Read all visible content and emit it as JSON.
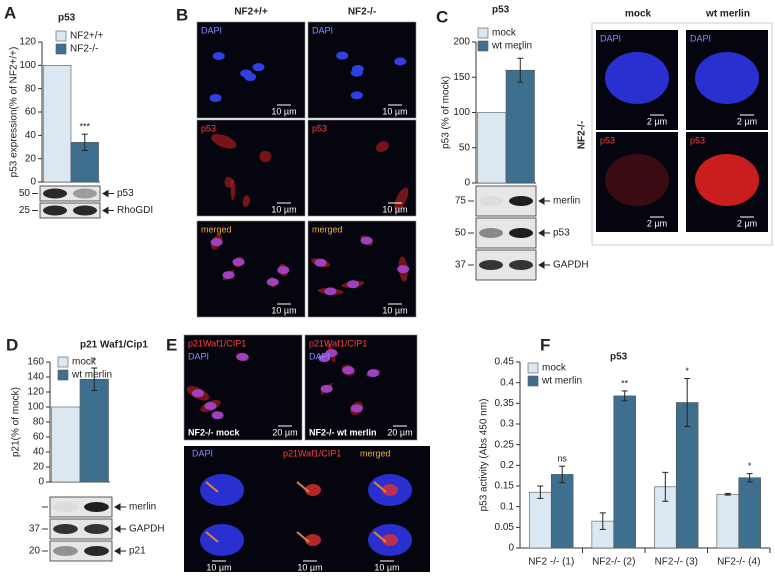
{
  "chart_data": [
    {
      "type": "bar",
      "panel": "A",
      "title": "p53",
      "y_label": "p53 expression(% of NF2+/+)",
      "categories": [
        null
      ],
      "series": [
        {
          "name": "NF2+/+",
          "color": "#dbe8f1",
          "values": [
            100
          ]
        },
        {
          "name": "NF2-/-",
          "color": "#3f6f8f",
          "values": [
            34
          ],
          "errors": [
            7
          ],
          "annotations": [
            "***"
          ]
        }
      ],
      "ylim": [
        0,
        120
      ],
      "yticks": [
        0,
        20,
        40,
        60,
        80,
        100,
        120
      ],
      "blots": [
        {
          "marker": "50",
          "label": "p53"
        },
        {
          "marker": "25",
          "label": "RhoGDI"
        }
      ]
    },
    {
      "type": "bar",
      "panel": "C",
      "title": "p53",
      "y_label": "p53 (% of mock)",
      "categories": [
        null
      ],
      "series": [
        {
          "name": "mock",
          "color": "#dbe8f1",
          "values": [
            100
          ]
        },
        {
          "name": "wt merlin",
          "color": "#3f6f8f",
          "values": [
            160
          ],
          "errors": [
            17
          ],
          "annotations": [
            "*"
          ]
        }
      ],
      "ylim": [
        0,
        200
      ],
      "yticks": [
        0,
        50,
        100,
        150,
        200
      ],
      "blots": [
        {
          "marker": "75",
          "label": "merlin"
        },
        {
          "marker": "50",
          "label": "p53"
        },
        {
          "marker": "37",
          "label": "GAPDH"
        }
      ]
    },
    {
      "type": "bar",
      "panel": "D",
      "title": "p21 Waf1/Cip1",
      "y_label": "p21(% of mock)",
      "categories": [
        null
      ],
      "series": [
        {
          "name": "mock",
          "color": "#dbe8f1",
          "values": [
            100
          ]
        },
        {
          "name": "wt merlin",
          "color": "#3f6f8f",
          "values": [
            137
          ],
          "errors": [
            15
          ],
          "annotations": [
            "*"
          ]
        }
      ],
      "ylim": [
        0,
        160
      ],
      "yticks": [
        0,
        20,
        40,
        60,
        80,
        100,
        120,
        140,
        160
      ],
      "blots": [
        {
          "label": "merlin"
        },
        {
          "marker": "37",
          "label": "GAPDH"
        },
        {
          "marker": "20",
          "label": "p21"
        }
      ]
    },
    {
      "type": "bar",
      "panel": "F",
      "title": "p53",
      "y_label": "p53 activity  (Abs 450 nm)",
      "categories": [
        "NF2 -/- (1)",
        "NF2-/- (2)",
        "NF2-/- (3)",
        "NF2-/- (4)"
      ],
      "series": [
        {
          "name": "mock",
          "color": "#dbe8f1",
          "values": [
            0.135,
            0.065,
            0.148,
            0.13
          ],
          "errors": [
            0.015,
            0.02,
            0.035,
            0.002
          ]
        },
        {
          "name": "wt merlin",
          "color": "#3f6f8f",
          "values": [
            0.178,
            0.368,
            0.352,
            0.17
          ],
          "errors": [
            0.02,
            0.012,
            0.058,
            0.01
          ],
          "annotations": [
            "ns",
            "**",
            "*",
            "*"
          ]
        }
      ],
      "ylim": [
        0,
        0.45
      ],
      "yticks": [
        0,
        0.05,
        0.1,
        0.15,
        0.2,
        0.25,
        0.3,
        0.35,
        0.4,
        0.45
      ]
    }
  ],
  "images": {
    "B": {
      "letter": "B",
      "columns": [
        "NF2+/+",
        "NF2-/-"
      ],
      "rows": [
        "DAPI",
        "p53",
        "merged"
      ],
      "scale": "10 µm"
    },
    "C": {
      "columns": [
        "mock",
        "wt merlin"
      ],
      "side": "NF2-/-",
      "rows": [
        "DAPI",
        "p53"
      ],
      "scale": "2 µm"
    },
    "E": {
      "letter": "E",
      "top_cells": [
        {
          "labels": [
            "p21Waf1/CIP1",
            "DAPI"
          ],
          "caption": "NF2-/- mock"
        },
        {
          "labels": [
            "p21Waf1/CIP1",
            "DAPI"
          ],
          "caption": "NF2-/- wt merlin"
        }
      ],
      "top_scale": "20 µm",
      "bottom_labels": [
        "DAPI",
        "p21Waf1/CIP1",
        "merged"
      ],
      "bottom_scale": "10 µm"
    }
  }
}
